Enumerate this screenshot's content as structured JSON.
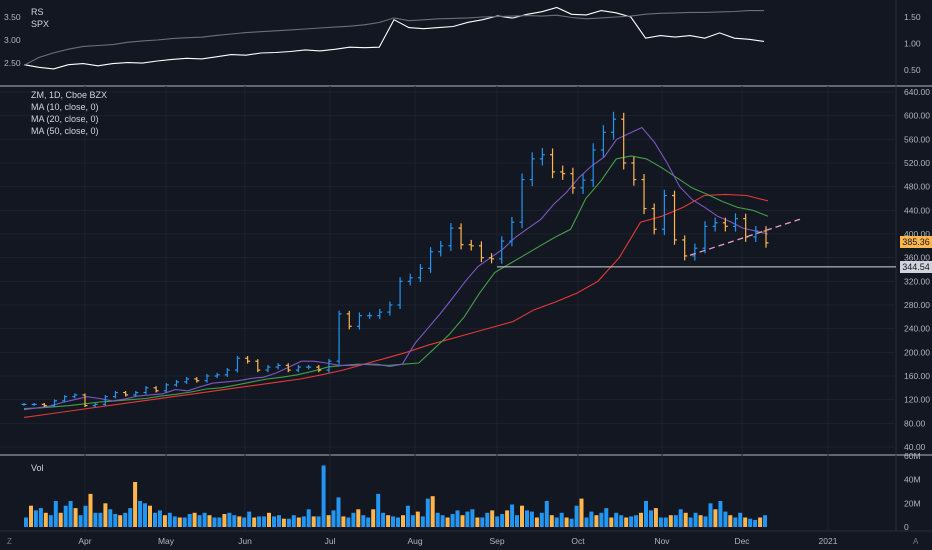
{
  "chart_data": [
    {
      "type": "line",
      "panel": "relative-strength",
      "legend": [
        "RS",
        "SPX"
      ],
      "left_ticks": [
        3.5,
        3.0,
        2.5
      ],
      "right_ticks": [
        1.5,
        1.0,
        0.5
      ],
      "series": [
        {
          "name": "RS",
          "color": "#ffffff",
          "axis": "right",
          "values": [
            0.6,
            0.55,
            0.52,
            0.6,
            0.62,
            0.58,
            0.62,
            0.64,
            0.63,
            0.67,
            0.7,
            0.72,
            0.71,
            0.75,
            0.79,
            0.78,
            0.82,
            0.83,
            0.85,
            0.88,
            0.86,
            0.89,
            0.93,
            0.92,
            0.93,
            1.45,
            1.3,
            1.28,
            1.3,
            1.32,
            1.4,
            1.45,
            1.52,
            1.48,
            1.55,
            1.6,
            1.68,
            1.55,
            1.54,
            1.62,
            1.58,
            1.5,
            1.1,
            1.15,
            1.12,
            1.15,
            1.1,
            1.2,
            1.1,
            1.08,
            1.04
          ]
        },
        {
          "name": "SPX",
          "color": "#6b6f7a",
          "axis": "left",
          "values": [
            2.45,
            2.62,
            2.72,
            2.8,
            2.86,
            2.88,
            2.9,
            2.95,
            2.98,
            3.0,
            3.03,
            3.05,
            3.06,
            3.1,
            3.13,
            3.16,
            3.18,
            3.2,
            3.22,
            3.24,
            3.26,
            3.28,
            3.3,
            3.33,
            3.38,
            3.48,
            3.42,
            3.44,
            3.46,
            3.47,
            3.48,
            3.5,
            3.51,
            3.52,
            3.53,
            3.52,
            3.54,
            3.49,
            3.46,
            3.48,
            3.5,
            3.52,
            3.56,
            3.58,
            3.59,
            3.6,
            3.6,
            3.61,
            3.62,
            3.64,
            3.64
          ]
        }
      ]
    },
    {
      "type": "candlestick",
      "panel": "price",
      "title": "ZM, 1D, Cboe BZX",
      "legend": [
        "MA (10, close, 0)",
        "MA (20, close, 0)",
        "MA (50, close, 0)"
      ],
      "y_ticks": [
        640,
        600,
        560,
        520,
        480,
        440,
        400,
        360,
        320,
        280,
        240,
        200,
        160,
        120,
        80,
        40
      ],
      "ylim": [
        40,
        640
      ],
      "x_ticks": [
        "Apr",
        "May",
        "Jun",
        "Jul",
        "Aug",
        "Sep",
        "Oct",
        "Nov",
        "Dec",
        "2021"
      ],
      "close": [
        112,
        112,
        110,
        118,
        125,
        128,
        110,
        112,
        125,
        132,
        128,
        132,
        140,
        135,
        145,
        150,
        155,
        152,
        160,
        162,
        170,
        190,
        185,
        170,
        175,
        178,
        170,
        175,
        175,
        170,
        185,
        265,
        244,
        262,
        262,
        268,
        280,
        320,
        326,
        342,
        370,
        380,
        410,
        382,
        380,
        360,
        358,
        388,
        420,
        492,
        527,
        534,
        505,
        502,
        478,
        491,
        542,
        572,
        594,
        520,
        492,
        443,
        408,
        465,
        390,
        363,
        376,
        413,
        419,
        413,
        426,
        395,
        405,
        385
      ],
      "ma10_close": [
        103,
        106,
        109,
        115,
        120,
        125,
        122,
        118,
        121,
        126,
        128,
        130,
        137,
        135,
        142,
        148,
        150,
        152,
        156,
        158,
        165,
        175,
        185,
        185,
        182,
        178,
        178,
        180,
        180,
        176,
        180,
        215,
        240,
        265,
        292,
        320,
        345,
        360,
        375,
        395,
        410,
        425,
        450,
        470,
        495,
        515,
        530,
        560,
        570,
        580,
        555,
        520,
        480,
        458,
        445,
        430,
        421,
        410,
        405,
        400
      ],
      "ma20_close": [
        105,
        106,
        108,
        110,
        113,
        116,
        118,
        120,
        122,
        126,
        129,
        133,
        138,
        140,
        145,
        150,
        155,
        158,
        162,
        168,
        175,
        178,
        180,
        179,
        178,
        180,
        182,
        206,
        230,
        260,
        300,
        335,
        350,
        365,
        380,
        395,
        408,
        460,
        490,
        527,
        532,
        527,
        512,
        495,
        478,
        467,
        455,
        445,
        440,
        430
      ],
      "ma50_close": [
        90,
        95,
        100,
        105,
        110,
        115,
        120,
        125,
        130,
        135,
        140,
        145,
        150,
        155,
        162,
        170,
        180,
        190,
        200,
        212,
        222,
        232,
        242,
        252,
        272,
        285,
        300,
        320,
        360,
        420,
        430,
        445,
        465,
        467,
        465,
        456
      ],
      "reference_line": 344.54,
      "last_price_label": "385.36",
      "reference_label": "344.54",
      "up_color": "#2196f3",
      "down_color": "#ffb74d"
    },
    {
      "type": "bar",
      "panel": "volume",
      "title": "Vol",
      "y_ticks": [
        "60M",
        "40M",
        "20M",
        "0"
      ],
      "ylim": [
        0,
        60
      ],
      "values": [
        8,
        18,
        14,
        16,
        12,
        10,
        22,
        12,
        18,
        22,
        16,
        10,
        18,
        28,
        12,
        12,
        20,
        15,
        11,
        10,
        12,
        16,
        38,
        22,
        20,
        18,
        12,
        14,
        10,
        12,
        9,
        8,
        8,
        11,
        12,
        10,
        12,
        10,
        8,
        8,
        11,
        12,
        10,
        9,
        8,
        13,
        8,
        9,
        9,
        12,
        9,
        10,
        7,
        7,
        10,
        8,
        9,
        15,
        9,
        9,
        52,
        10,
        14,
        25,
        9,
        8,
        12,
        15,
        10,
        8,
        15,
        28,
        12,
        10,
        9,
        8,
        10,
        18,
        10,
        13,
        9,
        24,
        26,
        12,
        10,
        8,
        11,
        14,
        10,
        13,
        15,
        8,
        8,
        12,
        14,
        9,
        11,
        14,
        19,
        10,
        18,
        14,
        13,
        8,
        12,
        22,
        10,
        8,
        12,
        8,
        7,
        18,
        24,
        8,
        13,
        10,
        12,
        16,
        8,
        12,
        10,
        8,
        9,
        10,
        12,
        22,
        14,
        16,
        8,
        8,
        10,
        10,
        15,
        12,
        8,
        12,
        10,
        9,
        20,
        15,
        22,
        13,
        10,
        8,
        12,
        8,
        7,
        6,
        8,
        10
      ]
    }
  ],
  "x_axis": {
    "labels": [
      "Apr",
      "May",
      "Jun",
      "Jul",
      "Aug",
      "Sep",
      "Oct",
      "Nov",
      "Dec",
      "2021"
    ]
  },
  "corner_left": "Z",
  "corner_right": "A"
}
